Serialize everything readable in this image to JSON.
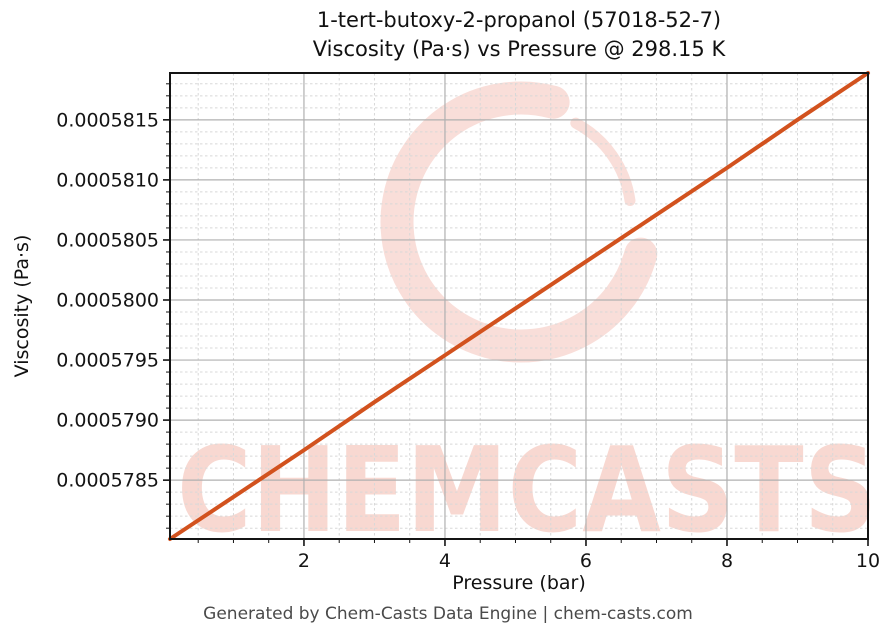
{
  "header": {
    "title_line1": "1-tert-butoxy-2-propanol (57018-52-7)",
    "title_line2": "Viscosity (Pa·s) vs Pressure @ 298.15 K"
  },
  "footer": {
    "credit": "Generated by Chem-Casts Data Engine | chem-casts.com"
  },
  "watermark": {
    "text": "CHEMCASTS",
    "color": "#e05a40",
    "ring_opacity": 0.2,
    "text_opacity": 0.24
  },
  "colors": {
    "line": "#d2521e",
    "grid_major": "#b0b0b0",
    "grid_minor": "#d8d8d8",
    "spine": "#141414",
    "tick_label": "#141414",
    "footer_text": "#4a4a4a"
  },
  "chart_data": {
    "type": "line",
    "title": "1-tert-butoxy-2-propanol (57018-52-7) — Viscosity (Pa·s) vs Pressure @ 298.15 K",
    "xlabel": "Pressure (bar)",
    "ylabel": "Viscosity (Pa·s)",
    "xlim": [
      0.1,
      10
    ],
    "ylim": [
      0.00057801,
      0.00058189
    ],
    "grid": {
      "major": true,
      "minor": true
    },
    "legend_position": "none",
    "xticks": [
      {
        "value": 2,
        "label": "2"
      },
      {
        "value": 4,
        "label": "4"
      },
      {
        "value": 6,
        "label": "6"
      },
      {
        "value": 8,
        "label": "8"
      },
      {
        "value": 10,
        "label": "10"
      }
    ],
    "xtick_minor_step": 0.5,
    "yticks": [
      {
        "value": 0.0005785,
        "label": "0.0005785"
      },
      {
        "value": 0.000579,
        "label": "0.0005790"
      },
      {
        "value": 0.0005795,
        "label": "0.0005795"
      },
      {
        "value": 0.00058,
        "label": "0.0005800"
      },
      {
        "value": 0.0005805,
        "label": "0.0005805"
      },
      {
        "value": 0.000581,
        "label": "0.0005810"
      },
      {
        "value": 0.0005815,
        "label": "0.0005815"
      }
    ],
    "ytick_minor_step": 1e-07,
    "series": [
      {
        "name": "Viscosity vs Pressure @ 298.15 K",
        "x": [
          0.1,
          1,
          2,
          3,
          4,
          5,
          6,
          7,
          8,
          9,
          10
        ],
        "y": [
          0.00057801,
          0.00057836,
          0.00057875,
          0.00057915,
          0.00057954,
          0.00057993,
          0.00058032,
          0.00058071,
          0.0005811,
          0.0005815,
          0.00058189
        ]
      }
    ]
  }
}
